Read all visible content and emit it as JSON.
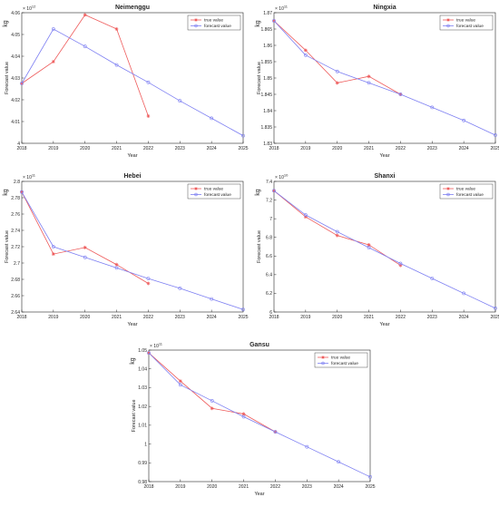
{
  "panels": [
    {
      "chart_data": {
        "type": "line",
        "title": "Neimenggu",
        "xlabel": "Year",
        "ylabel": "Forecast value",
        "unit_label": "kg",
        "exponent": "× 10",
        "exponent_power": "12",
        "xlim": [
          2018,
          2025
        ],
        "ylim": [
          4.0,
          4.06
        ],
        "xticks": [
          "2018",
          "2019",
          "2020",
          "2021",
          "2022",
          "2023",
          "2024",
          "2025"
        ],
        "yticks": [
          "4",
          "4.01",
          "4.02",
          "4.03",
          "4.04",
          "4.05",
          "4.06"
        ],
        "legend_position": "top-right",
        "series": [
          {
            "name": "true value",
            "color": "#ee5a5a",
            "marker": "star",
            "x": [
              2018,
              2019,
              2020,
              2021,
              2022
            ],
            "values": [
              4.0275,
              4.0375,
              4.059,
              4.0525,
              4.0125
            ]
          },
          {
            "name": "forecast value",
            "color": "#7d7ff2",
            "marker": "circle",
            "x": [
              2018,
              2019,
              2020,
              2021,
              2022,
              2023,
              2024,
              2025
            ],
            "values": [
              4.0275,
              4.0525,
              4.0445,
              4.036,
              4.028,
              4.0195,
              4.0115,
              4.0035
            ]
          }
        ]
      }
    },
    {
      "chart_data": {
        "type": "line",
        "title": "Ningxia",
        "xlabel": "Year",
        "ylabel": "Forecast value",
        "unit_label": "kg",
        "exponent": "× 10",
        "exponent_power": "11",
        "xlim": [
          2018,
          2025
        ],
        "ylim": [
          1.83,
          1.87
        ],
        "xticks": [
          "2018",
          "2019",
          "2020",
          "2021",
          "2022",
          "2023",
          "2024",
          "2025"
        ],
        "yticks": [
          "1.83",
          "1.835",
          "1.84",
          "1.845",
          "1.85",
          "1.855",
          "1.86",
          "1.865",
          "1.87"
        ],
        "legend_position": "top-right",
        "series": [
          {
            "name": "true value",
            "color": "#ee5a5a",
            "marker": "star",
            "x": [
              2018,
              2019,
              2020,
              2021,
              2022
            ],
            "values": [
              1.8675,
              1.8585,
              1.8485,
              1.8505,
              1.845
            ]
          },
          {
            "name": "forecast value",
            "color": "#7d7ff2",
            "marker": "circle",
            "x": [
              2018,
              2019,
              2020,
              2021,
              2022,
              2023,
              2024,
              2025
            ],
            "values": [
              1.8675,
              1.857,
              1.852,
              1.8485,
              1.845,
              1.841,
              1.837,
              1.8325
            ]
          }
        ]
      }
    },
    {
      "chart_data": {
        "type": "line",
        "title": "Hebei",
        "xlabel": "Year",
        "ylabel": "Forecast value",
        "unit_label": "kg",
        "exponent": "× 10",
        "exponent_power": "11",
        "xlim": [
          2018,
          2025
        ],
        "ylim": [
          2.64,
          2.8
        ],
        "xticks": [
          "2018",
          "2019",
          "2020",
          "2021",
          "2022",
          "2023",
          "2024",
          "2025"
        ],
        "yticks": [
          "2.64",
          "2.66",
          "2.68",
          "2.7",
          "2.72",
          "2.74",
          "2.76",
          "2.78",
          "2.8"
        ],
        "legend_position": "top-right",
        "series": [
          {
            "name": "true value",
            "color": "#ee5a5a",
            "marker": "star",
            "x": [
              2018,
              2019,
              2020,
              2021,
              2022
            ],
            "values": [
              2.787,
              2.711,
              2.719,
              2.698,
              2.675
            ]
          },
          {
            "name": "forecast value",
            "color": "#7d7ff2",
            "marker": "circle",
            "x": [
              2018,
              2019,
              2020,
              2021,
              2022,
              2023,
              2024,
              2025
            ],
            "values": [
              2.787,
              2.72,
              2.707,
              2.694,
              2.681,
              2.669,
              2.656,
              2.643
            ]
          }
        ]
      }
    },
    {
      "chart_data": {
        "type": "line",
        "title": "Shanxi",
        "xlabel": "Year",
        "ylabel": "Forecast value",
        "unit_label": "kg",
        "exponent": "× 10",
        "exponent_power": "10",
        "xlim": [
          2018,
          2025
        ],
        "ylim": [
          6.0,
          7.4
        ],
        "xticks": [
          "2018",
          "2019",
          "2020",
          "2021",
          "2022",
          "2023",
          "2024",
          "2025"
        ],
        "yticks": [
          "6",
          "6.2",
          "6.4",
          "6.6",
          "6.8",
          "7",
          "7.2",
          "7.4"
        ],
        "legend_position": "top-right",
        "series": [
          {
            "name": "true value",
            "color": "#ee5a5a",
            "marker": "star",
            "x": [
              2018,
              2019,
              2020,
              2021,
              2022
            ],
            "values": [
              7.3,
              7.02,
              6.82,
              6.72,
              6.5
            ]
          },
          {
            "name": "forecast value",
            "color": "#7d7ff2",
            "marker": "circle",
            "x": [
              2018,
              2019,
              2020,
              2021,
              2022,
              2023,
              2024,
              2025
            ],
            "values": [
              7.3,
              7.04,
              6.86,
              6.69,
              6.52,
              6.36,
              6.2,
              6.04
            ]
          }
        ]
      }
    },
    {
      "chart_data": {
        "type": "line",
        "title": "Gansu",
        "xlabel": "Year",
        "ylabel": "Forecast value",
        "unit_label": "kg",
        "exponent": "× 10",
        "exponent_power": "11",
        "xlim": [
          2018,
          2025
        ],
        "ylim": [
          0.98,
          1.05
        ],
        "xticks": [
          "2018",
          "2019",
          "2020",
          "2021",
          "2022",
          "2023",
          "2024",
          "2025"
        ],
        "yticks": [
          "0.98",
          "0.99",
          "1",
          "1.01",
          "1.02",
          "1.03",
          "1.04",
          "1.05"
        ],
        "legend_position": "top-right",
        "series": [
          {
            "name": "true value",
            "color": "#ee5a5a",
            "marker": "star",
            "x": [
              2018,
              2019,
              2020,
              2021,
              2022
            ],
            "values": [
              1.0485,
              1.0335,
              1.019,
              1.016,
              1.0065
            ]
          },
          {
            "name": "forecast value",
            "color": "#7d7ff2",
            "marker": "circle",
            "x": [
              2018,
              2019,
              2020,
              2021,
              2022,
              2023,
              2024,
              2025
            ],
            "values": [
              1.0485,
              1.0315,
              1.023,
              1.0145,
              1.0065,
              0.9985,
              0.9905,
              0.9825
            ]
          }
        ]
      }
    }
  ]
}
